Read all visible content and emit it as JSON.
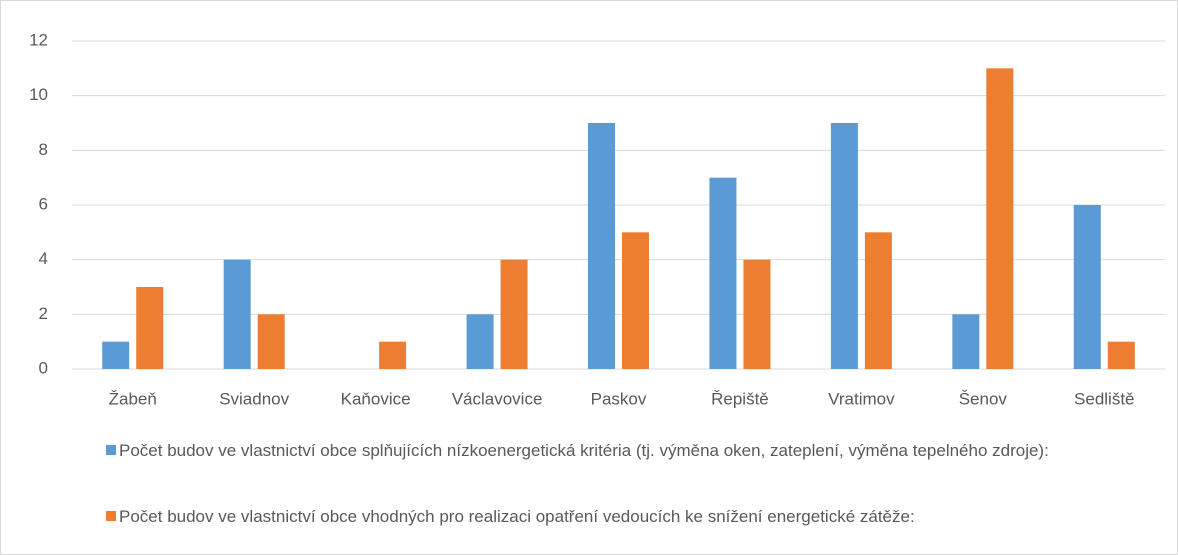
{
  "chart_data": {
    "type": "bar",
    "categories": [
      "Žabeň",
      "Sviadnov",
      "Kaňovice",
      "Václavovice",
      "Paskov",
      "Řepiště",
      "Vratimov",
      "Šenov",
      "Sedliště"
    ],
    "series": [
      {
        "name": "Počet budov ve vlastnictví obce splňujících nízkoenergetická kritéria (tj. výměna oken, zateplení, výměna tepelného zdroje):",
        "color": "#5b9bd5",
        "values": [
          1,
          4,
          0,
          2,
          9,
          7,
          9,
          2,
          6
        ]
      },
      {
        "name": "Počet budov ve vlastnictví obce vhodných pro realizaci opatření vedoucích ke snížení energetické zátěže:",
        "color": "#ed7d31",
        "values": [
          3,
          2,
          1,
          4,
          5,
          4,
          5,
          11,
          1
        ]
      }
    ],
    "ylim": [
      0,
      12
    ],
    "yticks": [
      0,
      2,
      4,
      6,
      8,
      10,
      12
    ],
    "grid": true
  }
}
